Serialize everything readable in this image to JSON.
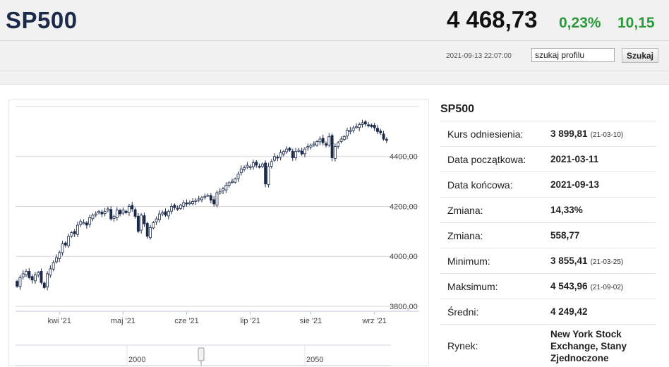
{
  "header": {
    "symbol": "SP500",
    "price": "4 468,73",
    "change_percent": "0,23%",
    "change_value": "10,15",
    "timestamp": "2021-09-13 22:07:00",
    "search_value": "szukaj profilu",
    "search_button": "Szukaj",
    "colors": {
      "symbol": "#1b2a4a",
      "positive": "#2a9a3a"
    }
  },
  "info": {
    "title": "SP500",
    "rows": [
      {
        "label": "Kurs odniesienia:",
        "value": "3 899,81",
        "date": "(21-03-10)"
      },
      {
        "label": "Data początkowa:",
        "value": "2021-03-11",
        "date": ""
      },
      {
        "label": "Data końcowa:",
        "value": "2021-09-13",
        "date": ""
      },
      {
        "label": "Zmiana:",
        "value": "14,33%",
        "date": ""
      },
      {
        "label": "Zmiana:",
        "value": "558,77",
        "date": ""
      },
      {
        "label": "Minimum:",
        "value": "3 855,41",
        "date": "(21-03-25)"
      },
      {
        "label": "Maksimum:",
        "value": "4 543,96",
        "date": "(21-09-02)"
      },
      {
        "label": "Średni:",
        "value": "4 249,42",
        "date": ""
      },
      {
        "label": "Rynek:",
        "value": "New York Stock Exchange, Stany Zjednoczone",
        "date": ""
      }
    ]
  },
  "chart_data": {
    "type": "candlestick",
    "y_ticks": [
      "4400,00",
      "4200,00",
      "4000,00",
      "3800,00"
    ],
    "y_tick_values": [
      4400,
      4200,
      4000,
      3800
    ],
    "ylim": [
      3780,
      4600
    ],
    "x_labels": [
      "kwi '21",
      "maj '21",
      "cze '21",
      "lip '21",
      "sie '21",
      "wrz '21"
    ],
    "x_label_index": [
      14,
      35,
      56,
      77,
      97,
      118
    ],
    "navigator_labels": [
      "2000",
      "2050"
    ],
    "close_series": [
      3880,
      3915,
      3930,
      3940,
      3915,
      3905,
      3925,
      3935,
      3895,
      3875,
      3930,
      3950,
      3975,
      3995,
      4015,
      4050,
      4045,
      4080,
      4095,
      4090,
      4125,
      4140,
      4135,
      4125,
      4155,
      4165,
      4170,
      4180,
      4170,
      4180,
      4190,
      4150,
      4160,
      4185,
      4170,
      4185,
      4175,
      4200,
      4190,
      4160,
      4100,
      4165,
      4130,
      4080,
      4115,
      4135,
      4150,
      4170,
      4175,
      4165,
      4180,
      4200,
      4195,
      4190,
      4205,
      4215,
      4210,
      4215,
      4220,
      4225,
      4230,
      4235,
      4240,
      4245,
      4225,
      4210,
      4255,
      4260,
      4270,
      4285,
      4295,
      4300,
      4310,
      4330,
      4350,
      4355,
      4365,
      4360,
      4375,
      4365,
      4360,
      4370,
      4290,
      4360,
      4380,
      4400,
      4395,
      4415,
      4420,
      4430,
      4425,
      4395,
      4420,
      4425,
      4410,
      4430,
      4440,
      4445,
      4450,
      4460,
      4470,
      4455,
      4445,
      4480,
      4395,
      4440,
      4455,
      4470,
      4480,
      4505,
      4505,
      4515,
      4520,
      4528,
      4535,
      4530,
      4525,
      4520,
      4515,
      4500,
      4495,
      4470,
      4468
    ],
    "up_color": "#ffffff",
    "down_color": "#1b2a4a",
    "grid_color": "#d8d8d8"
  }
}
